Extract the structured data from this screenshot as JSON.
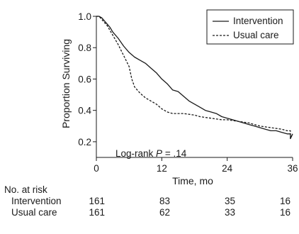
{
  "chart_data": {
    "type": "line",
    "xlabel": "Time, mo",
    "ylabel": "Proportion Surviving",
    "xlim": [
      0,
      36
    ],
    "ylim": [
      0.1,
      1.0
    ],
    "x_ticks": [
      "0",
      "12",
      "24",
      "36"
    ],
    "y_ticks": [
      "1.0",
      "0.8",
      "0.6",
      "0.4",
      "0.2"
    ],
    "annotation": "Log-rank P = .14",
    "legend": {
      "placement": "top-right",
      "entries": [
        "Intervention",
        "Usual care"
      ]
    },
    "series": [
      {
        "name": "Intervention",
        "style": "solid",
        "points": [
          [
            0,
            1.0
          ],
          [
            0.5,
            1.0
          ],
          [
            1,
            0.99
          ],
          [
            1.5,
            0.97
          ],
          [
            2,
            0.95
          ],
          [
            2.5,
            0.93
          ],
          [
            3,
            0.9
          ],
          [
            4,
            0.86
          ],
          [
            5,
            0.81
          ],
          [
            6,
            0.77
          ],
          [
            7,
            0.74
          ],
          [
            8,
            0.72
          ],
          [
            9,
            0.7
          ],
          [
            10,
            0.67
          ],
          [
            11,
            0.64
          ],
          [
            12,
            0.6
          ],
          [
            13,
            0.57
          ],
          [
            14,
            0.53
          ],
          [
            15,
            0.52
          ],
          [
            16,
            0.49
          ],
          [
            17,
            0.46
          ],
          [
            18,
            0.44
          ],
          [
            19,
            0.42
          ],
          [
            20,
            0.4
          ],
          [
            21,
            0.39
          ],
          [
            22,
            0.38
          ],
          [
            23,
            0.36
          ],
          [
            24,
            0.35
          ],
          [
            25,
            0.34
          ],
          [
            26,
            0.33
          ],
          [
            27,
            0.32
          ],
          [
            28,
            0.31
          ],
          [
            29,
            0.3
          ],
          [
            30,
            0.29
          ],
          [
            31,
            0.28
          ],
          [
            32,
            0.27
          ],
          [
            33,
            0.27
          ],
          [
            34,
            0.26
          ],
          [
            35,
            0.25
          ],
          [
            35.6,
            0.25
          ],
          [
            35.6,
            0.22
          ],
          [
            36,
            0.25
          ]
        ]
      },
      {
        "name": "Usual care",
        "style": "dashed",
        "points": [
          [
            0,
            1.0
          ],
          [
            0.5,
            1.0
          ],
          [
            1,
            0.98
          ],
          [
            1.5,
            0.96
          ],
          [
            2,
            0.94
          ],
          [
            2.5,
            0.91
          ],
          [
            3,
            0.88
          ],
          [
            4,
            0.82
          ],
          [
            5,
            0.75
          ],
          [
            6,
            0.68
          ],
          [
            6.5,
            0.6
          ],
          [
            7,
            0.55
          ],
          [
            8,
            0.51
          ],
          [
            9,
            0.48
          ],
          [
            10,
            0.46
          ],
          [
            11,
            0.44
          ],
          [
            12,
            0.41
          ],
          [
            13,
            0.39
          ],
          [
            14,
            0.38
          ],
          [
            16,
            0.38
          ],
          [
            18,
            0.37
          ],
          [
            19,
            0.36
          ],
          [
            21,
            0.35
          ],
          [
            23,
            0.34
          ],
          [
            24,
            0.34
          ],
          [
            26,
            0.33
          ],
          [
            28,
            0.32
          ],
          [
            30,
            0.3
          ],
          [
            32,
            0.29
          ],
          [
            34,
            0.28
          ],
          [
            35,
            0.27
          ],
          [
            35.6,
            0.27
          ],
          [
            35.6,
            0.22
          ],
          [
            36,
            0.25
          ]
        ]
      }
    ]
  },
  "risk_table": {
    "title": "No. at risk",
    "columns": [
      "0",
      "12",
      "24",
      "36"
    ],
    "rows": [
      {
        "label": "Intervention",
        "values": [
          "161",
          "83",
          "35",
          "16"
        ]
      },
      {
        "label": "Usual care",
        "values": [
          "161",
          "62",
          "33",
          "16"
        ]
      }
    ]
  }
}
